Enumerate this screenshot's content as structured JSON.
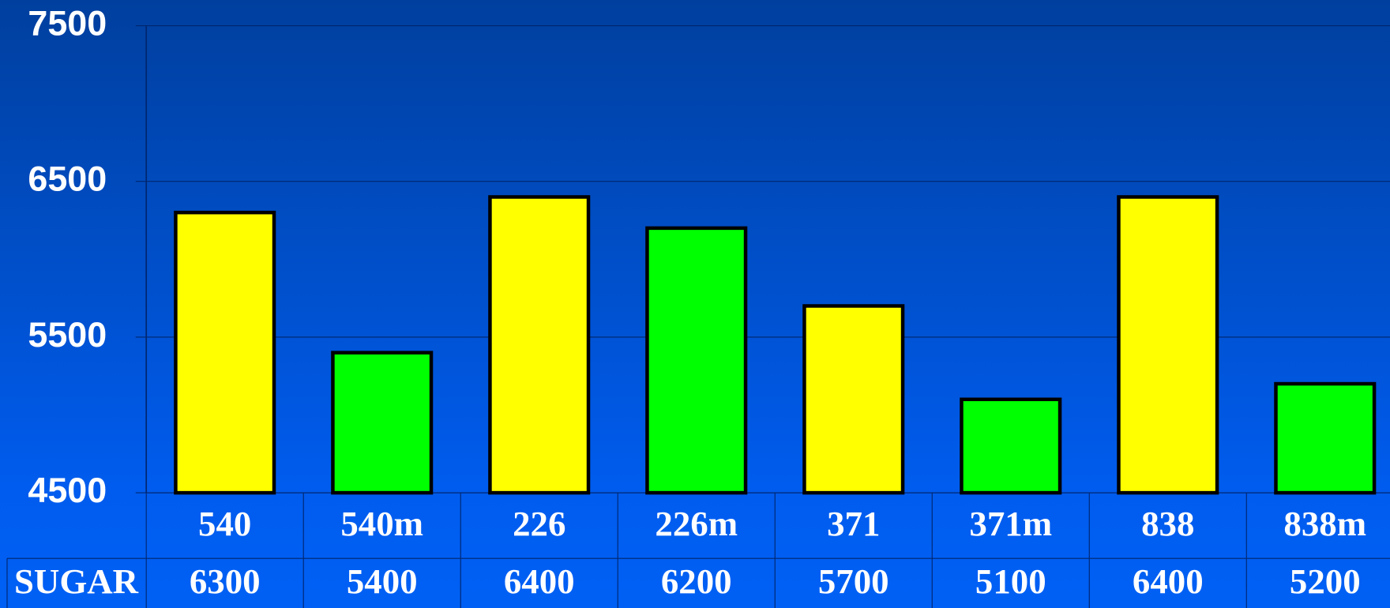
{
  "chart_data": {
    "type": "bar",
    "categories": [
      "540",
      "540m",
      "226",
      "226m",
      "371",
      "371m",
      "838",
      "838m"
    ],
    "series": [
      {
        "name": "SUGAR",
        "values": [
          6300,
          5400,
          6400,
          6200,
          5700,
          5100,
          6400,
          5200
        ],
        "colors": [
          "#ffff00",
          "#00ff00",
          "#ffff00",
          "#00ff00",
          "#ffff00",
          "#00ff00",
          "#ffff00",
          "#00ff00"
        ]
      }
    ],
    "ylim": [
      4500,
      7500
    ],
    "yticks": [
      4500,
      5500,
      6500,
      7500
    ],
    "grid": true,
    "data_table": true
  }
}
